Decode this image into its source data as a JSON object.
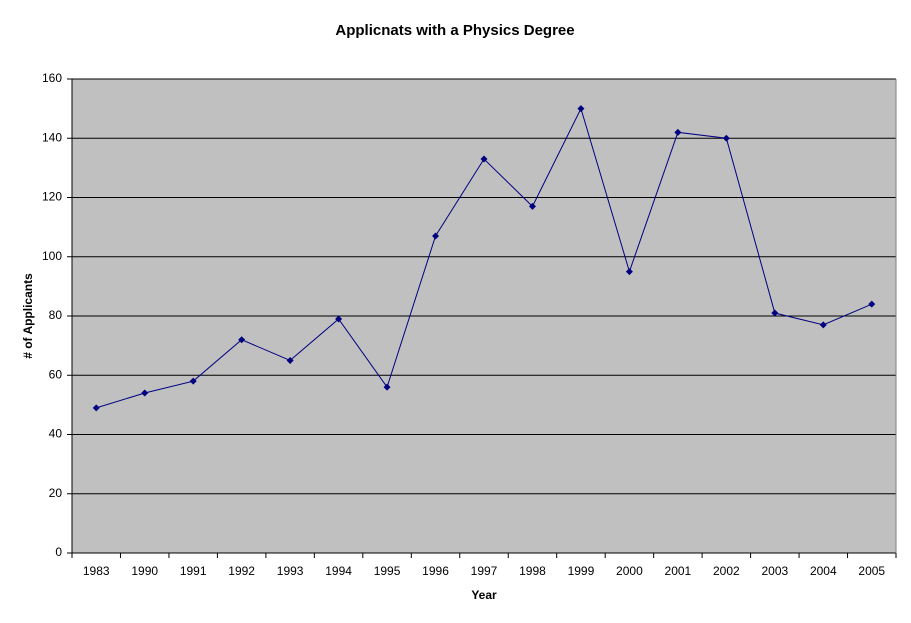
{
  "chart_data": {
    "type": "line",
    "title": "Applicnats with a Physics Degree",
    "x_label": "Year",
    "y_label": "# of Applicants",
    "categories": [
      "1983",
      "1990",
      "1991",
      "1992",
      "1993",
      "1994",
      "1995",
      "1996",
      "1997",
      "1998",
      "1999",
      "2000",
      "2001",
      "2002",
      "2003",
      "2004",
      "2005"
    ],
    "values": [
      49,
      54,
      58,
      72,
      65,
      79,
      56,
      107,
      133,
      117,
      150,
      95,
      142,
      140,
      81,
      77,
      84
    ],
    "color": "#000080",
    "ylim": [
      0,
      160
    ],
    "yticks": [
      0,
      20,
      40,
      60,
      80,
      100,
      120,
      140,
      160
    ],
    "grid": true
  }
}
